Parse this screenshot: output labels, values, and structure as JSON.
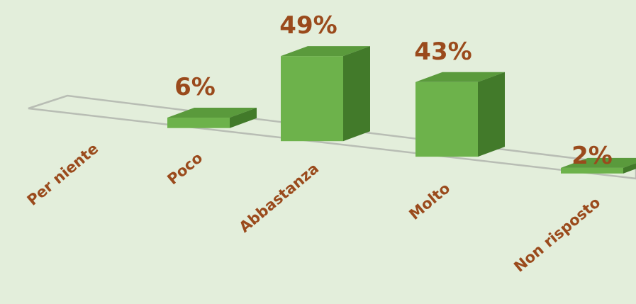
{
  "chart_data": {
    "type": "bar",
    "style": "3d-column",
    "categories": [
      "Per niente",
      "Poco",
      "Abbastanza",
      "Molto",
      "Non risposto"
    ],
    "values": [
      0,
      6,
      49,
      43,
      2
    ],
    "value_labels": [
      "",
      "6%",
      "49%",
      "43%",
      "2%"
    ],
    "unit": "%",
    "ylim": [
      0,
      50
    ],
    "grid": false,
    "legend": "none",
    "colors": {
      "front": "#6db24b",
      "top": "#5a9a3c",
      "side": "#427a2a",
      "label": "#9a4a1c",
      "floor": "#b8bdb4",
      "background": "#e3eedb"
    }
  }
}
